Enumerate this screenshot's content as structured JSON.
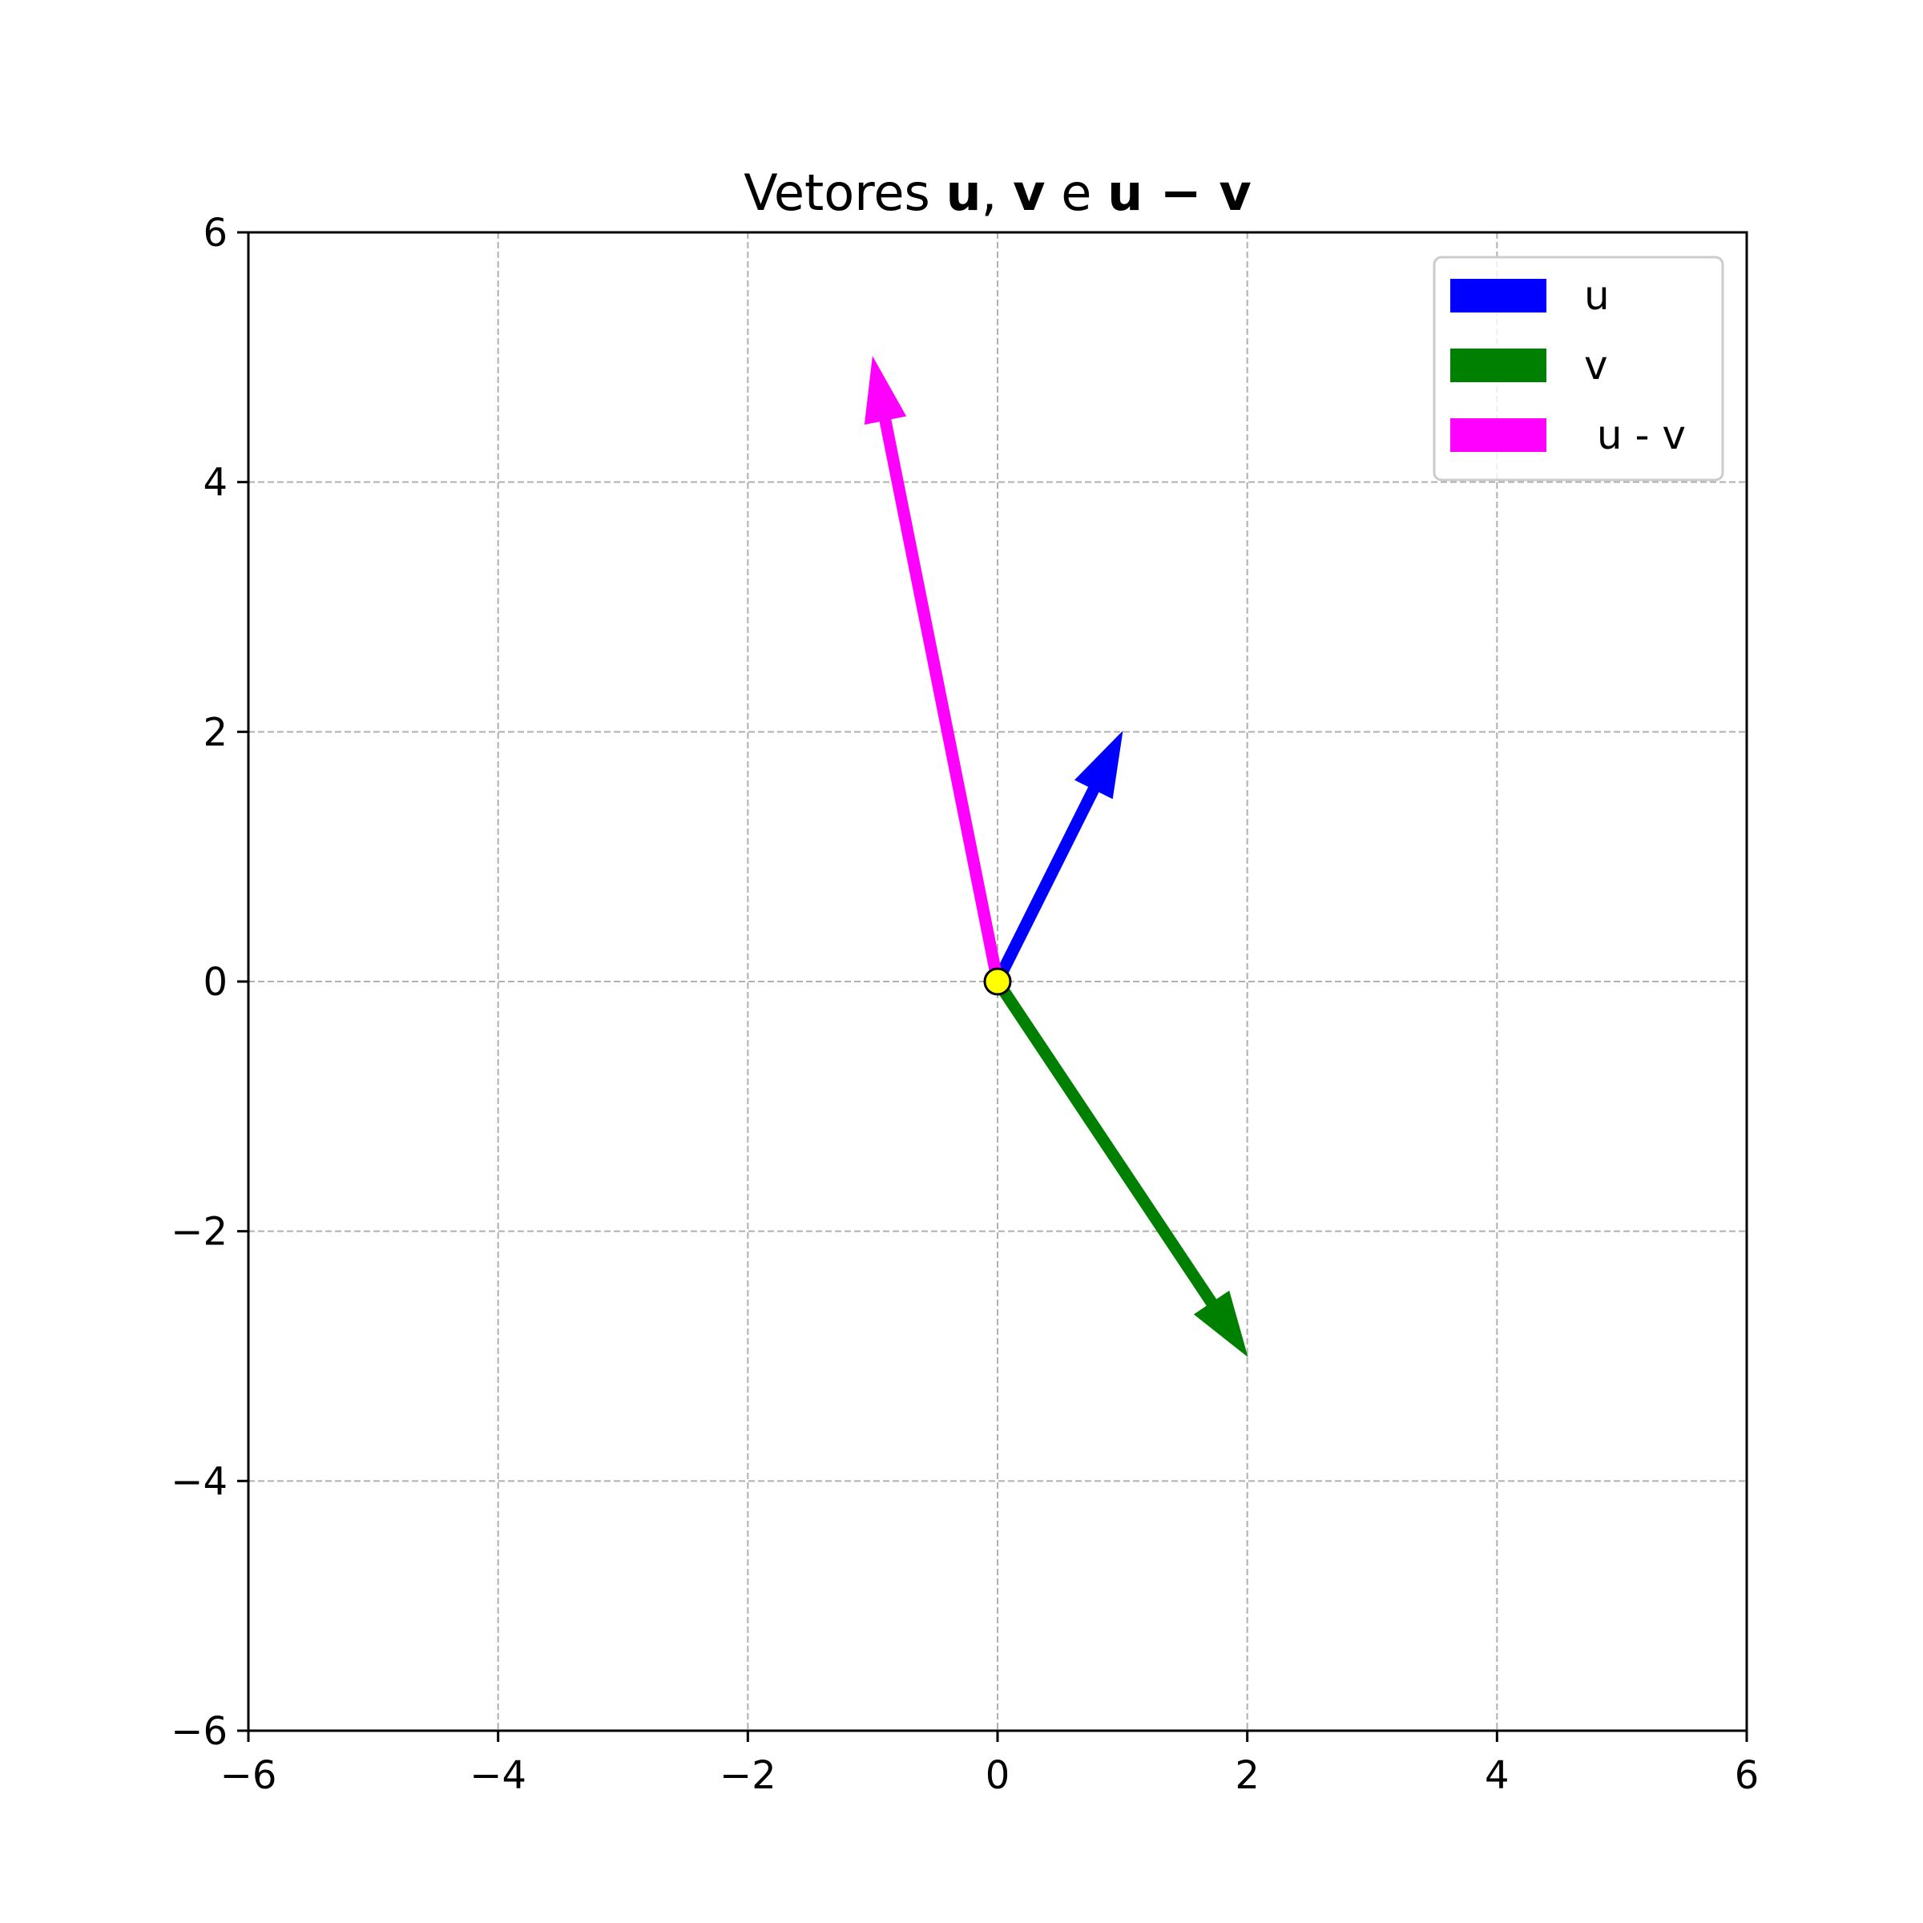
{
  "chart_data": {
    "type": "vector",
    "title": {
      "prefix": "Vetores ",
      "u": "u",
      "sep1": ", ",
      "v": "v",
      "sep2": " e ",
      "diff": "u − v"
    },
    "xlim": [
      -6,
      6
    ],
    "ylim": [
      -6,
      6
    ],
    "xticks": [
      -6,
      -4,
      -2,
      0,
      2,
      4,
      6
    ],
    "yticks": [
      -6,
      -4,
      -2,
      0,
      2,
      4,
      6
    ],
    "xtick_labels": [
      "−6",
      "−4",
      "−2",
      "0",
      "2",
      "4",
      "6"
    ],
    "ytick_labels": [
      "−6",
      "−4",
      "−2",
      "0",
      "2",
      "4",
      "6"
    ],
    "grid": true,
    "legend_position": "top-right",
    "origin": [
      0,
      0
    ],
    "origin_color": "#ffff00",
    "series": [
      {
        "name": "u",
        "start": [
          0,
          0
        ],
        "end": [
          1,
          2
        ],
        "color": "#0000ff"
      },
      {
        "name": "v",
        "start": [
          0,
          0
        ],
        "end": [
          2,
          -3
        ],
        "color": "#008000"
      },
      {
        "name": " u - v",
        "start": [
          0,
          0
        ],
        "end": [
          -1,
          5
        ],
        "color": "#ff00ff"
      }
    ]
  }
}
